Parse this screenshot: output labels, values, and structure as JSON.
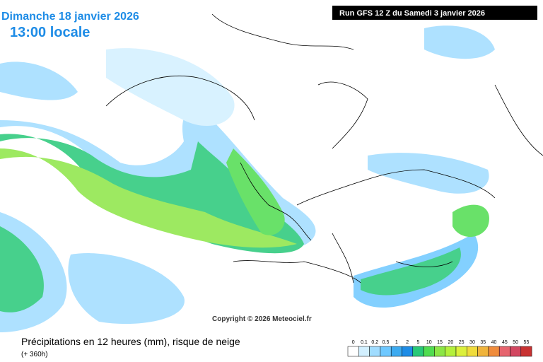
{
  "header": {
    "date": "Dimanche 18 janvier 2026",
    "time": "13:00 locale",
    "run": "Run GFS 12 Z du Samedi 3 janvier 2026"
  },
  "copyright": "Copyright © 2026 Meteociel.fr",
  "footer": {
    "title": "Précipitations en 12 heures (mm), risque de neige",
    "lead": "(+ 360h)"
  },
  "legend": {
    "labels": [
      0,
      0.1,
      0.2,
      0.5,
      1,
      2,
      5,
      10,
      15,
      20,
      25,
      30,
      35,
      40,
      45,
      50,
      55
    ],
    "colors": [
      "#ffffff",
      "#d2f0ff",
      "#a0dcff",
      "#6ec8ff",
      "#3caaf0",
      "#1e8ce6",
      "#28c878",
      "#50dc50",
      "#8ce646",
      "#b4f03c",
      "#dcf03c",
      "#f0dc3c",
      "#f0b43c",
      "#f08c3c",
      "#e6646e",
      "#d24660",
      "#c83232"
    ]
  }
}
